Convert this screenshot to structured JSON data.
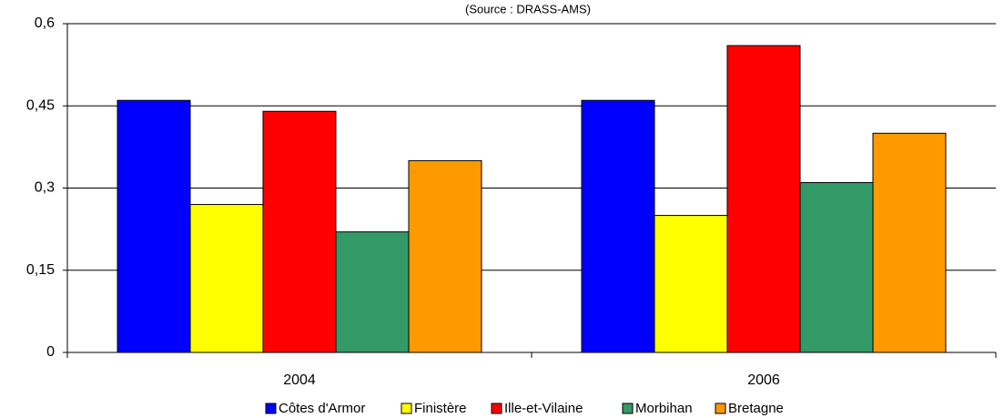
{
  "chart_data": {
    "type": "bar",
    "subtitle": "(Source : DRASS-AMS)",
    "categories": [
      "2004",
      "2006"
    ],
    "series": [
      {
        "name": "Côtes d'Armor",
        "color": "#0000ff",
        "values": [
          0.46,
          0.46
        ]
      },
      {
        "name": "Finistère",
        "color": "#ffff00",
        "values": [
          0.27,
          0.25
        ]
      },
      {
        "name": "Ille-et-Vilaine",
        "color": "#ff0000",
        "values": [
          0.44,
          0.56
        ]
      },
      {
        "name": "Morbihan",
        "color": "#339966",
        "values": [
          0.22,
          0.31
        ]
      },
      {
        "name": "Bretagne",
        "color": "#ff9900",
        "values": [
          0.35,
          0.4
        ]
      }
    ],
    "ylim": [
      0,
      0.6
    ],
    "yticks": [
      0,
      {
        "value": 0.15,
        "label": "0,15"
      },
      {
        "value": 0.3,
        "label": "0,3"
      },
      {
        "value": 0.45,
        "label": "0,45"
      },
      {
        "value": 0.6,
        "label": "0,6"
      }
    ],
    "grid": true,
    "legend": "bottom"
  }
}
